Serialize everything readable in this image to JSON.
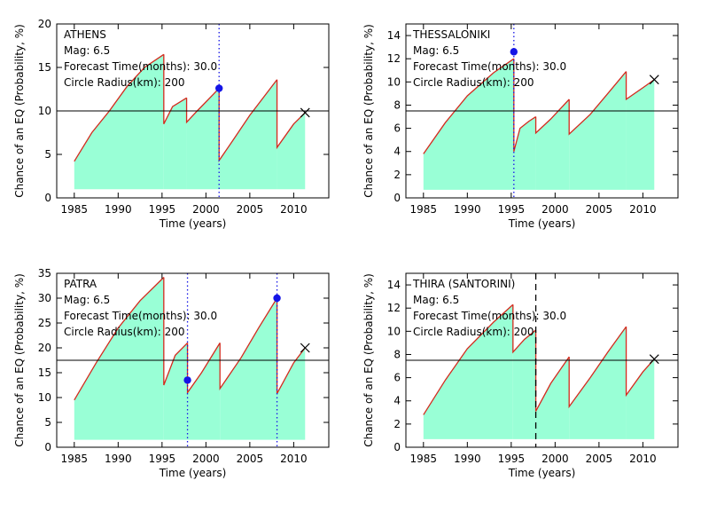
{
  "chart_data": [
    {
      "type": "area",
      "title": "ATHENS",
      "info_lines": [
        "Mag: 6.5",
        "Forecast Time(months): 30.0",
        "Circle Radius(km): 200"
      ],
      "xlabel": "Time (years)",
      "ylabel": "Chance of an EQ (Probability, %)",
      "xlim": [
        1983,
        2014
      ],
      "ylim": [
        0,
        20
      ],
      "xticks": [
        1985,
        1990,
        1995,
        2000,
        2005,
        2010
      ],
      "yticks": [
        0,
        5,
        10,
        15,
        20
      ],
      "baseline": 1,
      "threshold": 10,
      "segments": [
        {
          "x": [
            1985.0,
            1987.0,
            1989.0,
            1991.0,
            1993.0,
            1995.2
          ],
          "y": [
            4.2,
            7.5,
            10.0,
            12.8,
            15.0,
            16.5
          ]
        },
        {
          "x": [
            1995.2,
            1996.2,
            1997.8
          ],
          "y": [
            8.5,
            10.5,
            11.5
          ]
        },
        {
          "x": [
            1997.8,
            1999.0,
            2001.5
          ],
          "y": [
            8.7,
            10.0,
            12.6
          ]
        },
        {
          "x": [
            2001.5,
            2003.0,
            2005.0,
            2008.1
          ],
          "y": [
            4.3,
            6.5,
            9.5,
            13.6
          ]
        },
        {
          "x": [
            2008.1,
            2010.0,
            2011.3
          ],
          "y": [
            5.8,
            8.5,
            9.8
          ]
        }
      ],
      "event_markers": [
        {
          "x": 2001.5,
          "y": 12.6
        }
      ],
      "dotted_lines": [
        2001.5
      ],
      "dashed_lines": [],
      "end_marker": {
        "x": 2011.3,
        "y": 9.8
      },
      "colors": {
        "fill": "#99ffd6",
        "line": "#d42a1e",
        "marker": "#1515e6",
        "vline": "#1515e6"
      }
    },
    {
      "type": "area",
      "title": "THESSALONIKI",
      "info_lines": [
        "Mag: 6.5",
        "Forecast Time(months): 30.0",
        "Circle Radius(km): 200"
      ],
      "xlabel": "Time (years)",
      "ylabel": "Chance of an EQ (Probability, %)",
      "xlim": [
        1983,
        2014
      ],
      "ylim": [
        0,
        15
      ],
      "xticks": [
        1985,
        1990,
        1995,
        2000,
        2005,
        2010
      ],
      "yticks": [
        0,
        2,
        4,
        6,
        8,
        10,
        12,
        14
      ],
      "baseline": 0.7,
      "threshold": 7.5,
      "segments": [
        {
          "x": [
            1985.0,
            1987.5,
            1990.0,
            1993.0,
            1995.3
          ],
          "y": [
            3.8,
            6.5,
            8.8,
            10.8,
            12.0
          ]
        },
        {
          "x": [
            1995.3,
            1996.0,
            1997.0,
            1997.8
          ],
          "y": [
            4.0,
            6.0,
            6.6,
            7.0
          ]
        },
        {
          "x": [
            1997.8,
            1999.5,
            2001.6
          ],
          "y": [
            5.6,
            6.8,
            8.5
          ]
        },
        {
          "x": [
            2001.6,
            2004.0,
            2006.0,
            2008.1
          ],
          "y": [
            5.5,
            7.2,
            9.0,
            10.9
          ]
        },
        {
          "x": [
            2008.1,
            2010.0,
            2011.3
          ],
          "y": [
            8.5,
            9.5,
            10.2
          ]
        }
      ],
      "event_markers": [
        {
          "x": 1995.3,
          "y": 12.6
        }
      ],
      "dotted_lines": [
        1995.3
      ],
      "dashed_lines": [],
      "end_marker": {
        "x": 2011.3,
        "y": 10.2
      },
      "colors": {
        "fill": "#99ffd6",
        "line": "#d42a1e",
        "marker": "#1515e6",
        "vline": "#1515e6"
      }
    },
    {
      "type": "area",
      "title": "PATRA",
      "info_lines": [
        "Mag: 6.5",
        "Forecast Time(months): 30.0",
        "Circle Radius(km): 200"
      ],
      "xlabel": "Time (years)",
      "ylabel": "Chance of an EQ (Probability, %)",
      "xlim": [
        1983,
        2014
      ],
      "ylim": [
        0,
        35
      ],
      "xticks": [
        1985,
        1990,
        1995,
        2000,
        2005,
        2010
      ],
      "yticks": [
        0,
        5,
        10,
        15,
        20,
        25,
        30,
        35
      ],
      "baseline": 1.5,
      "threshold": 17.5,
      "segments": [
        {
          "x": [
            1985.0,
            1987.5,
            1990.0,
            1992.5,
            1995.2
          ],
          "y": [
            9.5,
            17.0,
            24.0,
            29.5,
            34.2
          ]
        },
        {
          "x": [
            1995.2,
            1996.5,
            1997.9
          ],
          "y": [
            12.5,
            18.5,
            21.0
          ]
        },
        {
          "x": [
            1997.9,
            1999.5,
            2001.6
          ],
          "y": [
            11.0,
            15.0,
            21.0
          ]
        },
        {
          "x": [
            2001.6,
            2004.0,
            2006.0,
            2008.1
          ],
          "y": [
            11.8,
            18.0,
            24.0,
            30.0
          ]
        },
        {
          "x": [
            2008.1,
            2010.0,
            2011.3
          ],
          "y": [
            10.8,
            17.0,
            20.0
          ]
        }
      ],
      "event_markers": [
        {
          "x": 1997.9,
          "y": 13.5
        },
        {
          "x": 2008.1,
          "y": 30.0
        }
      ],
      "dotted_lines": [
        1997.9,
        2008.1
      ],
      "dashed_lines": [],
      "end_marker": {
        "x": 2011.3,
        "y": 20.0
      },
      "colors": {
        "fill": "#99ffd6",
        "line": "#d42a1e",
        "marker": "#1515e6",
        "vline": "#1515e6"
      }
    },
    {
      "type": "area",
      "title": "THIRA (SANTORINI)",
      "info_lines": [
        "Mag: 6.5",
        "Forecast Time(months): 30.0",
        "Circle Radius(km): 200"
      ],
      "xlabel": "Time (years)",
      "ylabel": "Chance of an EQ (Probability, %)",
      "xlim": [
        1983,
        2014
      ],
      "ylim": [
        0,
        15
      ],
      "xticks": [
        1985,
        1990,
        1995,
        2000,
        2005,
        2010
      ],
      "yticks": [
        0,
        2,
        4,
        6,
        8,
        10,
        12,
        14
      ],
      "baseline": 0.7,
      "threshold": 7.5,
      "segments": [
        {
          "x": [
            1985.0,
            1987.5,
            1990.0,
            1993.0,
            1995.2
          ],
          "y": [
            2.8,
            5.8,
            8.5,
            10.8,
            12.3
          ]
        },
        {
          "x": [
            1995.2,
            1996.5,
            1997.8
          ],
          "y": [
            8.2,
            9.3,
            10.1
          ]
        },
        {
          "x": [
            1997.8,
            1999.5,
            2001.6
          ],
          "y": [
            3.1,
            5.5,
            7.8
          ]
        },
        {
          "x": [
            2001.6,
            2004.0,
            2006.0,
            2008.1
          ],
          "y": [
            3.5,
            6.0,
            8.2,
            10.4
          ]
        },
        {
          "x": [
            2008.1,
            2010.0,
            2011.3
          ],
          "y": [
            4.5,
            6.5,
            7.6
          ]
        }
      ],
      "event_markers": [],
      "dotted_lines": [],
      "dashed_lines": [
        1997.8
      ],
      "end_marker": {
        "x": 2011.3,
        "y": 7.6
      },
      "colors": {
        "fill": "#99ffd6",
        "line": "#d42a1e",
        "marker": "#1515e6",
        "vline": "#000000"
      }
    }
  ]
}
